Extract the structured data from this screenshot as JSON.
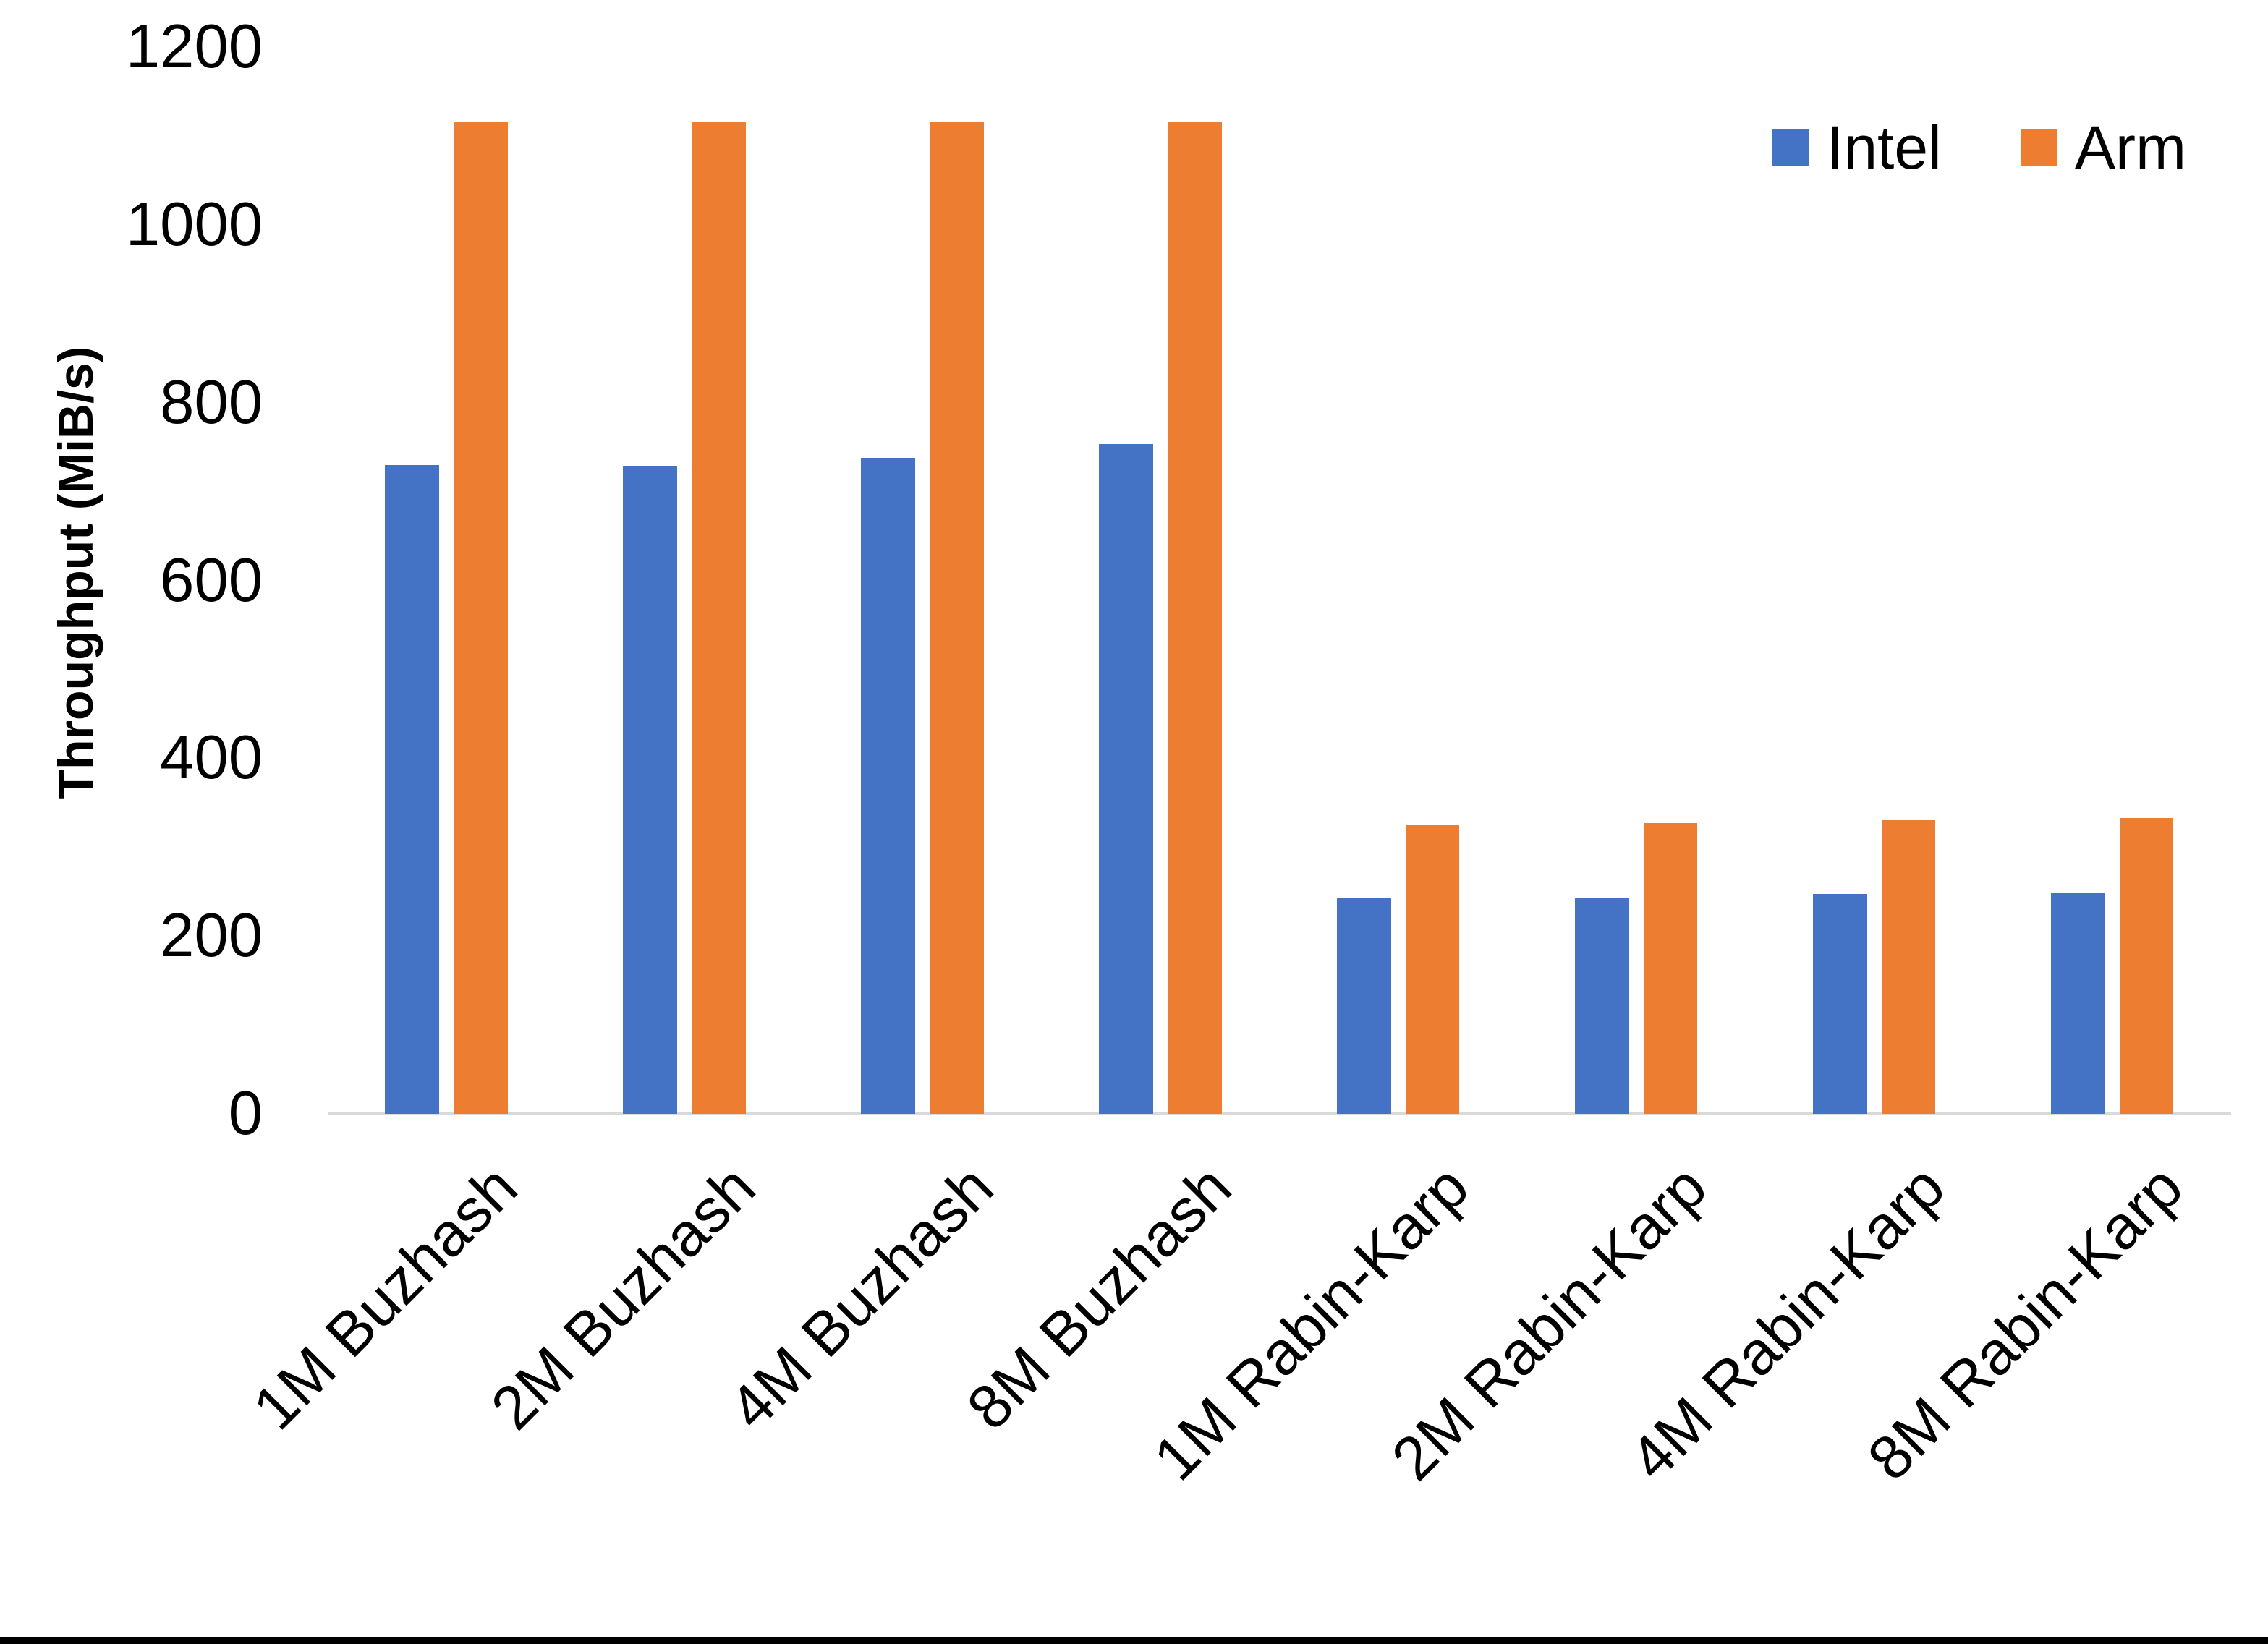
{
  "figure": {
    "background": "#FFFFFF",
    "bottom_border_color": "#000000",
    "text_color": "#000000"
  },
  "chart_data": {
    "type": "bar",
    "title": "",
    "xlabel": "",
    "ylabel": "Throughput (MiB/s)",
    "ylim": [
      0,
      1200
    ],
    "yticks": [
      "0",
      "200",
      "400",
      "600",
      "800",
      "1000",
      "1200"
    ],
    "grid": false,
    "legend_position": "top-right",
    "axis_line_color": "#D9D9D9",
    "categories": [
      "1M Buzhash",
      "2M Buzhash",
      "4M Buzhash",
      "8M Buzhash",
      "1M Rabin-Karp",
      "2M Rabin-Karp",
      "4M Rabin-Karp",
      "8M Rabin-Karp"
    ],
    "series": [
      {
        "name": "Intel",
        "color": "#4472C4",
        "values": [
          730,
          729,
          738,
          753,
          243,
          243,
          247,
          248
        ]
      },
      {
        "name": "Arm",
        "color": "#ED7D31",
        "values": [
          1115,
          1115,
          1115,
          1115,
          325,
          327,
          330,
          333
        ]
      }
    ]
  }
}
